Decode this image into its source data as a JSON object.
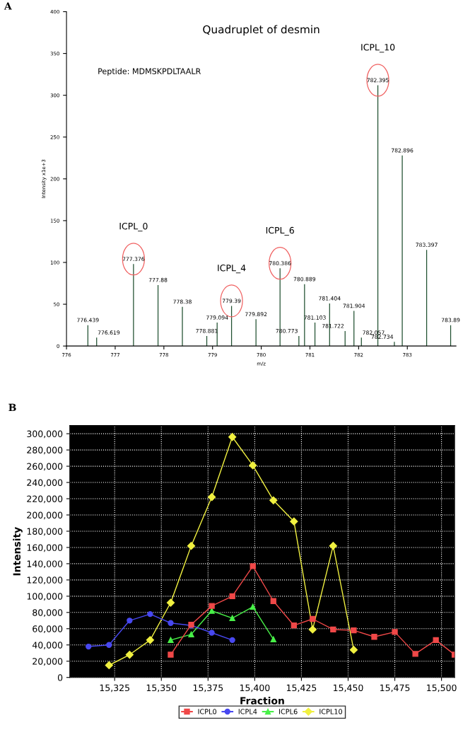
{
  "chart_data": [
    {
      "type": "bar",
      "title": "Quadruplet of desmin",
      "xlabel": "m/z",
      "ylabel": "Intensity x1e+3",
      "color": "#1f4f2f",
      "x": [
        776.439,
        776.619,
        777.376,
        777.88,
        778.38,
        778.881,
        779.094,
        779.39,
        779.892,
        780.386,
        780.773,
        780.889,
        781.103,
        781.404,
        781.722,
        781.904,
        782.057,
        782.395,
        782.734,
        782.896,
        783.397,
        783.89
      ],
      "values": [
        25,
        10,
        98,
        73,
        47,
        12,
        28,
        48,
        32,
        93,
        12,
        74,
        28,
        51,
        18,
        42,
        10,
        312,
        5,
        228,
        115,
        25
      ],
      "xlim": [
        776,
        784
      ],
      "ylim": [
        0,
        400
      ],
      "xticks": [
        776,
        777,
        778,
        779,
        780,
        781,
        782,
        783
      ],
      "yticks": [
        0,
        50,
        100,
        150,
        200,
        250,
        300,
        350,
        400
      ],
      "annotations": [
        "A",
        "Peptide: MDMSKPDLTAALR",
        "ICPL_0",
        "ICPL_4",
        "ICPL_6",
        "ICPL_10",
        {
          "text": "777.376",
          "x": 777.376,
          "y": 98
        },
        {
          "text": "779.39",
          "x": 779.39,
          "y": 48
        },
        {
          "text": "780.386",
          "x": 780.386,
          "y": 93
        },
        {
          "text": "782.395",
          "x": 782.395,
          "y": 312
        },
        {
          "text": "776.439",
          "x": 776.439,
          "y": 25
        },
        {
          "text": "776.619",
          "x": 776.619,
          "y": 10
        },
        {
          "text": "777.88",
          "x": 777.88,
          "y": 73
        },
        {
          "text": "778.38",
          "x": 778.38,
          "y": 47
        },
        {
          "text": "778.881",
          "x": 778.881,
          "y": 12
        },
        {
          "text": "779.094",
          "x": 779.094,
          "y": 28
        },
        {
          "text": "779.892",
          "x": 779.892,
          "y": 32
        },
        {
          "text": "780.773",
          "x": 780.773,
          "y": 12
        },
        {
          "text": "780.889",
          "x": 780.889,
          "y": 74
        },
        {
          "text": "781.103",
          "x": 781.103,
          "y": 28
        },
        {
          "text": "781.404",
          "x": 781.404,
          "y": 51
        },
        {
          "text": "781.722",
          "x": 781.722,
          "y": 18
        },
        {
          "text": "781.904",
          "x": 781.904,
          "y": 42
        },
        {
          "text": "782.057",
          "x": 782.057,
          "y": 10
        },
        {
          "text": "782.734",
          "x": 782.734,
          "y": 5
        },
        {
          "text": "782.896",
          "x": 782.896,
          "y": 228
        },
        {
          "text": "783.397",
          "x": 783.397,
          "y": 115
        },
        {
          "text": "783.89",
          "x": 783.89,
          "y": 25
        }
      ]
    },
    {
      "type": "line",
      "xlabel": "Fraction",
      "ylabel": "Intensity",
      "grid": true,
      "legend": "bottom",
      "xlim": [
        15301,
        15507
      ],
      "ylim": [
        0,
        310000
      ],
      "xticks": [
        {
          "value": 15325,
          "label": "15,325"
        },
        {
          "value": 15350,
          "label": "15,350"
        },
        {
          "value": 15375,
          "label": "15,375"
        },
        {
          "value": 15400,
          "label": "15,400"
        },
        {
          "value": 15425,
          "label": "15,425"
        },
        {
          "value": 15450,
          "label": "15,450"
        },
        {
          "value": 15475,
          "label": "15,475"
        },
        {
          "value": 15500,
          "label": "15,500"
        }
      ],
      "yticks": [
        {
          "value": 0,
          "label": "0"
        },
        {
          "value": 20000,
          "label": "20,000"
        },
        {
          "value": 40000,
          "label": "40,000"
        },
        {
          "value": 60000,
          "label": "60,000"
        },
        {
          "value": 80000,
          "label": "80,000"
        },
        {
          "value": 100000,
          "label": "100,000"
        },
        {
          "value": 120000,
          "label": "120,000"
        },
        {
          "value": 140000,
          "label": "140,000"
        },
        {
          "value": 160000,
          "label": "160,000"
        },
        {
          "value": 180000,
          "label": "180,000"
        },
        {
          "value": 200000,
          "label": "200,000"
        },
        {
          "value": 220000,
          "label": "220,000"
        },
        {
          "value": 240000,
          "label": "240,000"
        },
        {
          "value": 260000,
          "label": "260,000"
        },
        {
          "value": 280000,
          "label": "280,000"
        },
        {
          "value": 300000,
          "label": "300,000"
        }
      ],
      "annotations": [
        "B"
      ],
      "series": [
        {
          "name": "ICPL0",
          "color": "#f04848",
          "marker": "square",
          "x": [
            15355,
            15366,
            15377,
            15388,
            15399,
            15410,
            15421,
            15431,
            15442,
            15453,
            15464,
            15475,
            15486,
            15497,
            15507
          ],
          "values": [
            28000,
            65000,
            88000,
            100000,
            137000,
            94000,
            64000,
            72000,
            59000,
            58000,
            50000,
            56000,
            29000,
            46000,
            28000
          ]
        },
        {
          "name": "ICPL4",
          "color": "#4848f0",
          "marker": "circle",
          "x": [
            15311,
            15322,
            15333,
            15344,
            15355,
            15366,
            15377,
            15388
          ],
          "values": [
            38000,
            40000,
            70000,
            78000,
            67000,
            64000,
            55000,
            46000
          ]
        },
        {
          "name": "ICPL6",
          "color": "#48f048",
          "marker": "triangle",
          "x": [
            15355,
            15366,
            15377,
            15388,
            15399,
            15410
          ],
          "values": [
            46000,
            53000,
            82000,
            73000,
            87000,
            47000
          ]
        },
        {
          "name": "ICPL10",
          "color": "#f0f040",
          "marker": "diamond",
          "x": [
            15322,
            15333,
            15344,
            15355,
            15366,
            15377,
            15388,
            15399,
            15410,
            15421,
            15431,
            15442,
            15453
          ],
          "values": [
            15000,
            28000,
            46000,
            92000,
            162000,
            222000,
            296000,
            261000,
            218000,
            192000,
            59000,
            162000,
            34000
          ]
        }
      ]
    }
  ]
}
